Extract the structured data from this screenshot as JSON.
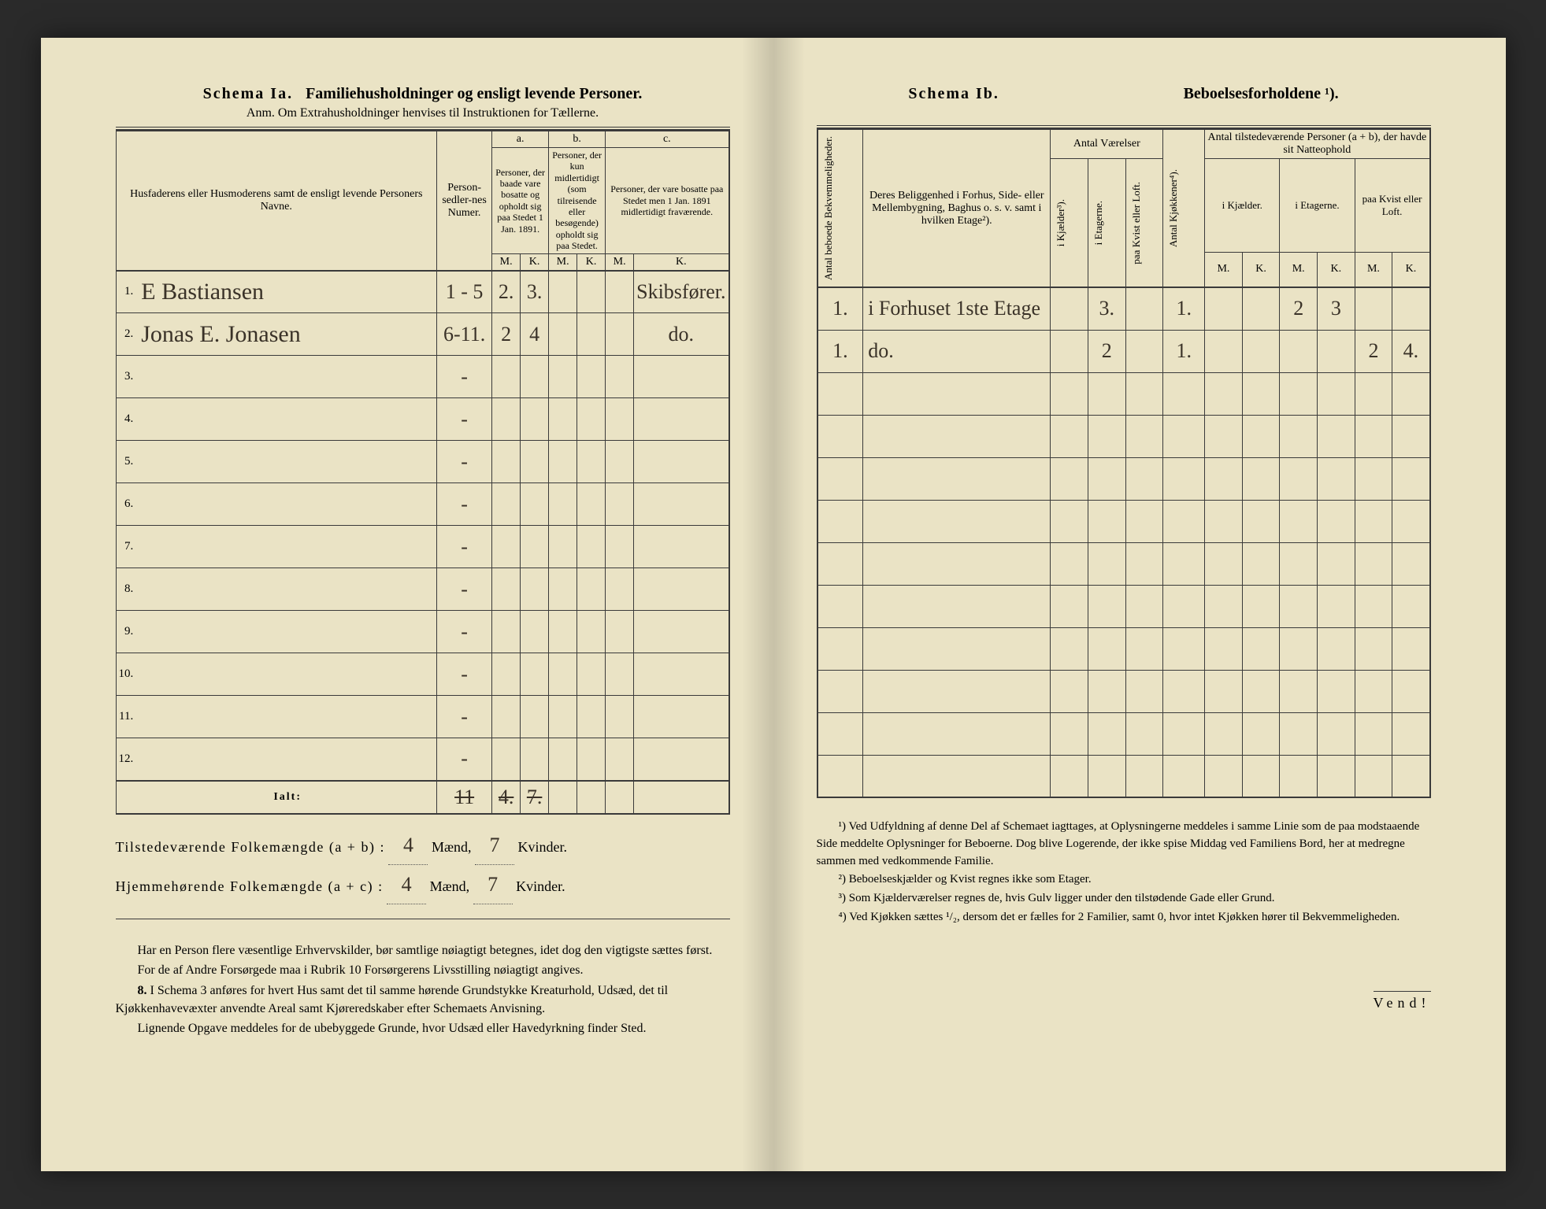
{
  "left": {
    "schema_label": "Schema Ia.",
    "schema_title": "Familiehusholdninger og ensligt levende Personer.",
    "anm": "Anm. Om Extrahusholdninger henvises til Instruktionen for Tællerne.",
    "hdr_name": "Husfaderens eller Husmoderens samt de ensligt levende Personers Navne.",
    "hdr_seddel": "Person-sedler-nes Numer.",
    "hdr_a": "a.",
    "hdr_a_sub": "Personer, der baade vare bosatte og opholdt sig paa Stedet 1 Jan. 1891.",
    "hdr_b": "b.",
    "hdr_b_sub": "Personer, der kun midlertidigt (som tilreisende eller besøgende) opholdt sig paa Stedet.",
    "hdr_c": "c.",
    "hdr_c_sub": "Personer, der vare bosatte paa Stedet men 1 Jan. 1891 midlertidigt fraværende.",
    "mk_m": "M.",
    "mk_k": "K.",
    "rows": [
      {
        "n": "1.",
        "name": "E Bastiansen",
        "sed": "1 - 5",
        "am": "2.",
        "ak": "3.",
        "bm": "",
        "bk": "",
        "cm": "",
        "ck": "Skibsfører."
      },
      {
        "n": "2.",
        "name": "Jonas E. Jonasen",
        "sed": "6-11.",
        "am": "2",
        "ak": "4",
        "bm": "",
        "bk": "",
        "cm": "",
        "ck": "do."
      },
      {
        "n": "3.",
        "name": "",
        "sed": "-",
        "am": "",
        "ak": "",
        "bm": "",
        "bk": "",
        "cm": "",
        "ck": ""
      },
      {
        "n": "4.",
        "name": "",
        "sed": "-",
        "am": "",
        "ak": "",
        "bm": "",
        "bk": "",
        "cm": "",
        "ck": ""
      },
      {
        "n": "5.",
        "name": "",
        "sed": "-",
        "am": "",
        "ak": "",
        "bm": "",
        "bk": "",
        "cm": "",
        "ck": ""
      },
      {
        "n": "6.",
        "name": "",
        "sed": "-",
        "am": "",
        "ak": "",
        "bm": "",
        "bk": "",
        "cm": "",
        "ck": ""
      },
      {
        "n": "7.",
        "name": "",
        "sed": "-",
        "am": "",
        "ak": "",
        "bm": "",
        "bk": "",
        "cm": "",
        "ck": ""
      },
      {
        "n": "8.",
        "name": "",
        "sed": "-",
        "am": "",
        "ak": "",
        "bm": "",
        "bk": "",
        "cm": "",
        "ck": ""
      },
      {
        "n": "9.",
        "name": "",
        "sed": "-",
        "am": "",
        "ak": "",
        "bm": "",
        "bk": "",
        "cm": "",
        "ck": ""
      },
      {
        "n": "10.",
        "name": "",
        "sed": "-",
        "am": "",
        "ak": "",
        "bm": "",
        "bk": "",
        "cm": "",
        "ck": ""
      },
      {
        "n": "11.",
        "name": "",
        "sed": "-",
        "am": "",
        "ak": "",
        "bm": "",
        "bk": "",
        "cm": "",
        "ck": ""
      },
      {
        "n": "12.",
        "name": "",
        "sed": "-",
        "am": "",
        "ak": "",
        "bm": "",
        "bk": "",
        "cm": "",
        "ck": ""
      }
    ],
    "ialt_label": "Ialt:",
    "ialt_sed": "11",
    "ialt_am": "4.",
    "ialt_ak": "7.",
    "sum1_label": "Tilstedeværende Folkemængde (a + b) :",
    "sum1_m": "4",
    "sum1_k": "7",
    "sum2_label": "Hjemmehørende Folkemængde (a + c) :",
    "sum2_m": "4",
    "sum2_k": "7",
    "maend": "Mænd,",
    "kvinder": "Kvinder.",
    "para1": "Har en Person flere væsentlige Erhvervskilder, bør samtlige nøiagtigt betegnes, idet dog den vigtigste sættes først.",
    "para2": "For de af Andre Forsørgede maa i Rubrik 10 Forsørgerens Livsstilling nøiagtigt angives.",
    "para3_lead": "8.",
    "para3": "I Schema 3 anføres for hvert Hus samt det til samme hørende Grundstykke Kreaturhold, Udsæd, det til Kjøkkenhavevæxter anvendte Areal samt Kjøreredskaber efter Schemaets Anvisning.",
    "para4": "Lignende Opgave meddeles for de ubebyggede Grunde, hvor Udsæd eller Havedyrkning finder Sted."
  },
  "right": {
    "schema_label": "Schema Ib.",
    "schema_title": "Beboelsesforholdene ¹).",
    "hdr_bekv": "Antal beboede Bekvemmeligheder.",
    "hdr_belig": "Deres Beliggenhed i Forhus, Side- eller Mellembygning, Baghus o. s. v. samt i hvilken Etage²).",
    "hdr_vaer": "Antal Værelser",
    "hdr_kj": "i Kjælder³).",
    "hdr_et": "i Etagerne.",
    "hdr_kv": "paa Kvist eller Loft.",
    "hdr_kjok": "Antal Kjøkkener⁴).",
    "hdr_pers": "Antal tilstedeværende Personer (a + b), der havde sit Natteophold",
    "hdr_p_kj": "i Kjælder.",
    "hdr_p_et": "i Etagerne.",
    "hdr_p_kv": "paa Kvist eller Loft.",
    "mk_m": "M.",
    "mk_k": "K.",
    "rows": [
      {
        "bekv": "1.",
        "loc": "i Forhuset 1ste Etage",
        "kj": "",
        "et": "3.",
        "kv": "",
        "kjok": "1.",
        "pkjm": "",
        "pkjk": "",
        "petm": "2",
        "petk": "3",
        "pkvm": "",
        "pkvk": ""
      },
      {
        "bekv": "1.",
        "loc": "do.",
        "kj": "",
        "et": "2",
        "kv": "",
        "kjok": "1.",
        "pkjm": "",
        "pkjk": "",
        "petm": "",
        "petk": "",
        "pkvm": "2",
        "pkvk": "4."
      },
      {
        "bekv": "",
        "loc": "",
        "kj": "",
        "et": "",
        "kv": "",
        "kjok": "",
        "pkjm": "",
        "pkjk": "",
        "petm": "",
        "petk": "",
        "pkvm": "",
        "pkvk": ""
      },
      {
        "bekv": "",
        "loc": "",
        "kj": "",
        "et": "",
        "kv": "",
        "kjok": "",
        "pkjm": "",
        "pkjk": "",
        "petm": "",
        "petk": "",
        "pkvm": "",
        "pkvk": ""
      },
      {
        "bekv": "",
        "loc": "",
        "kj": "",
        "et": "",
        "kv": "",
        "kjok": "",
        "pkjm": "",
        "pkjk": "",
        "petm": "",
        "petk": "",
        "pkvm": "",
        "pkvk": ""
      },
      {
        "bekv": "",
        "loc": "",
        "kj": "",
        "et": "",
        "kv": "",
        "kjok": "",
        "pkjm": "",
        "pkjk": "",
        "petm": "",
        "petk": "",
        "pkvm": "",
        "pkvk": ""
      },
      {
        "bekv": "",
        "loc": "",
        "kj": "",
        "et": "",
        "kv": "",
        "kjok": "",
        "pkjm": "",
        "pkjk": "",
        "petm": "",
        "petk": "",
        "pkvm": "",
        "pkvk": ""
      },
      {
        "bekv": "",
        "loc": "",
        "kj": "",
        "et": "",
        "kv": "",
        "kjok": "",
        "pkjm": "",
        "pkjk": "",
        "petm": "",
        "petk": "",
        "pkvm": "",
        "pkvk": ""
      },
      {
        "bekv": "",
        "loc": "",
        "kj": "",
        "et": "",
        "kv": "",
        "kjok": "",
        "pkjm": "",
        "pkjk": "",
        "petm": "",
        "petk": "",
        "pkvm": "",
        "pkvk": ""
      },
      {
        "bekv": "",
        "loc": "",
        "kj": "",
        "et": "",
        "kv": "",
        "kjok": "",
        "pkjm": "",
        "pkjk": "",
        "petm": "",
        "petk": "",
        "pkvm": "",
        "pkvk": ""
      },
      {
        "bekv": "",
        "loc": "",
        "kj": "",
        "et": "",
        "kv": "",
        "kjok": "",
        "pkjm": "",
        "pkjk": "",
        "petm": "",
        "petk": "",
        "pkvm": "",
        "pkvk": ""
      },
      {
        "bekv": "",
        "loc": "",
        "kj": "",
        "et": "",
        "kv": "",
        "kjok": "",
        "pkjm": "",
        "pkjk": "",
        "petm": "",
        "petk": "",
        "pkvm": "",
        "pkvk": ""
      }
    ],
    "fn1": "¹) Ved Udfyldning af denne Del af Schemaet iagttages, at Oplysningerne meddeles i samme Linie som de paa modstaaende Side meddelte Oplysninger for Beboerne. Dog blive Logerende, der ikke spise Middag ved Familiens Bord, her at medregne sammen med vedkommende Familie.",
    "fn2": "²) Beboelseskjælder og Kvist regnes ikke som Etager.",
    "fn3": "³) Som Kjælderværelser regnes de, hvis Gulv ligger under den tilstødende Gade eller Grund.",
    "fn4": "⁴) Ved Kjøkken sættes ¹/₂, dersom det er fælles for 2 Familier, samt 0, hvor intet Kjøkken hører til Bekvemmeligheden.",
    "vend": "Vend!"
  }
}
